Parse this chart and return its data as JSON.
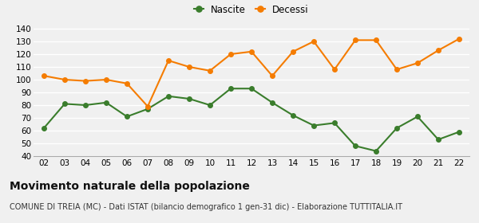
{
  "years": [
    "02",
    "03",
    "04",
    "05",
    "06",
    "07",
    "08",
    "09",
    "10",
    "11",
    "12",
    "13",
    "14",
    "15",
    "16",
    "17",
    "18",
    "19",
    "20",
    "21",
    "22"
  ],
  "nascite": [
    62,
    81,
    80,
    82,
    71,
    77,
    87,
    85,
    80,
    93,
    93,
    82,
    72,
    64,
    66,
    48,
    44,
    62,
    71,
    53,
    59
  ],
  "decessi": [
    103,
    100,
    99,
    100,
    97,
    79,
    115,
    110,
    107,
    120,
    122,
    103,
    122,
    130,
    108,
    131,
    131,
    108,
    113,
    123,
    132
  ],
  "nascite_color": "#3a7d2c",
  "decessi_color": "#f57c00",
  "background_color": "#f0f0f0",
  "grid_color": "#ffffff",
  "title": "Movimento naturale della popolazione",
  "subtitle": "COMUNE DI TREIA (MC) - Dati ISTAT (bilancio demografico 1 gen-31 dic) - Elaborazione TUTTITALIA.IT",
  "legend_nascite": "Nascite",
  "legend_decessi": "Decessi",
  "ylim": [
    40,
    145
  ],
  "yticks": [
    40,
    50,
    60,
    70,
    80,
    90,
    100,
    110,
    120,
    130,
    140
  ],
  "marker_size": 4,
  "line_width": 1.5,
  "title_fontsize": 10,
  "subtitle_fontsize": 7,
  "tick_fontsize": 7.5,
  "legend_fontsize": 8.5
}
